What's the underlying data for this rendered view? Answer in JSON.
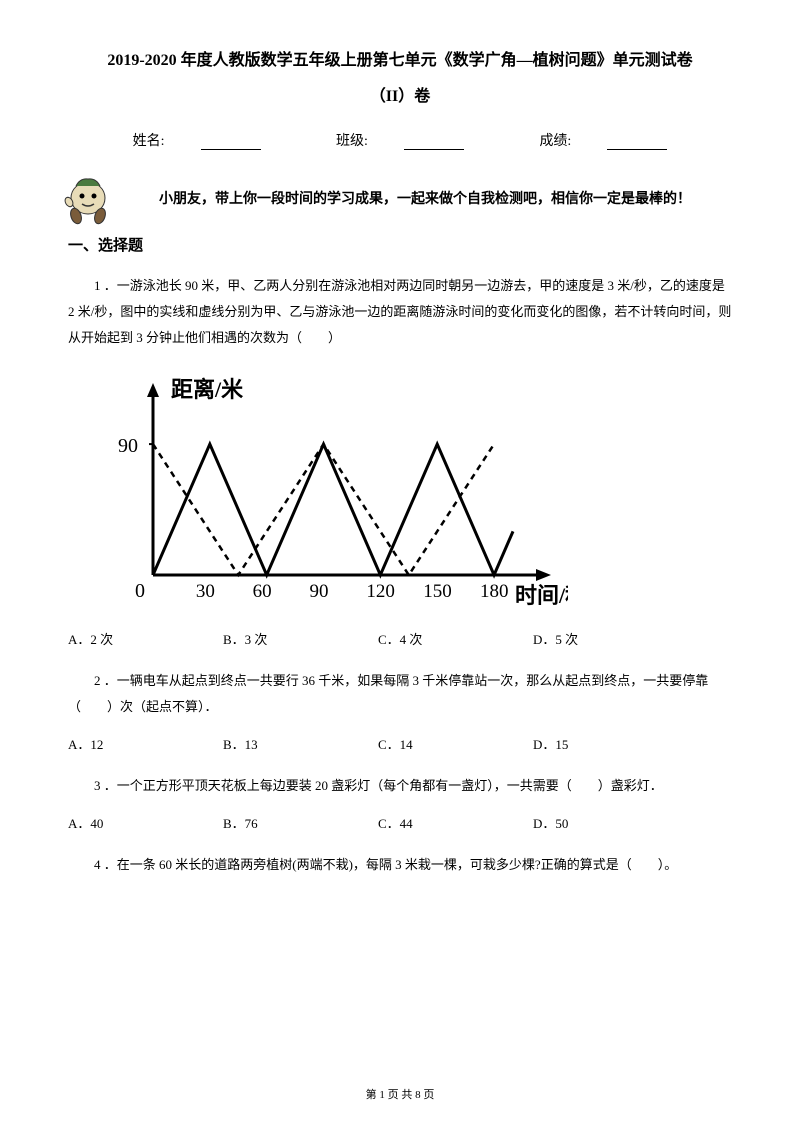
{
  "title_main": "2019-2020 年度人教版数学五年级上册第七单元《数学广角—植树问题》单元测试卷",
  "title_sub": "（II）卷",
  "info": {
    "name_label": "姓名:",
    "class_label": "班级:",
    "score_label": "成绩:"
  },
  "encourage": "小朋友，带上你一段时间的学习成果，一起来做个自我检测吧，相信你一定是最棒的！",
  "section1": "一、选择题",
  "q1": {
    "num": "1 ．",
    "text": "一游泳池长 90 米，甲、乙两人分别在游泳池相对两边同时朝另一边游去，甲的速度是 3 米/秒，乙的速度是 2 米/秒，图中的实线和虚线分别为甲、乙与游泳池一边的距离随游泳时间的变化而变化的图像，若不计转向时间，则从开始起到 3 分钟止他们相遇的次数为（　　）",
    "options": {
      "a": "A．2 次",
      "b": "B．3 次",
      "c": "C．4 次",
      "d": "D．5 次"
    }
  },
  "q2": {
    "num": "2 ．",
    "text": "一辆电车从起点到终点一共要行 36 千米，如果每隔 3 千米停靠站一次，那么从起点到终点，一共要停靠（　　）次（起点不算）．",
    "options": {
      "a": "A．12",
      "b": "B．13",
      "c": "C．14",
      "d": "D．15"
    }
  },
  "q3": {
    "num": "3 ．",
    "text": "一个正方形平顶天花板上每边要装 20 盏彩灯（每个角都有一盏灯），一共需要（　　）盏彩灯．",
    "options": {
      "a": "A．40",
      "b": "B．76",
      "c": "C．44",
      "d": "D．50"
    }
  },
  "q4": {
    "num": "4 ．",
    "text": "在一条 60 米长的道路两旁植树(两端不栽)，每隔 3 米栽一棵，可栽多少棵?正确的算式是（　　）。"
  },
  "chart": {
    "type": "line",
    "ylabel": "距离/米",
    "xlabel": "时间/秒",
    "xticks": [
      0,
      30,
      60,
      90,
      120,
      150,
      180
    ],
    "yticks": [
      0,
      90
    ],
    "xlim": [
      0,
      190
    ],
    "ylim": [
      0,
      110
    ],
    "series1_solid": [
      [
        0,
        0
      ],
      [
        30,
        90
      ],
      [
        60,
        0
      ],
      [
        90,
        90
      ],
      [
        120,
        0
      ],
      [
        150,
        90
      ],
      [
        180,
        0
      ]
    ],
    "series2_dashed": [
      [
        0,
        90
      ],
      [
        45,
        0
      ],
      [
        90,
        90
      ],
      [
        135,
        0
      ],
      [
        180,
        90
      ]
    ],
    "solid_color": "#000000",
    "dashed_color": "#000000",
    "line_width": 2.5,
    "dash_pattern": "6,5",
    "background_color": "#ffffff",
    "axis_width": 3,
    "label_fontsize": 22
  },
  "footer": {
    "page": "第 1 页 共 8 页"
  },
  "colors": {
    "text": "#000000",
    "bg": "#ffffff",
    "mascot_green": "#4a7a3f",
    "mascot_tan": "#d9c89a",
    "mascot_brown": "#7a5c3a"
  }
}
